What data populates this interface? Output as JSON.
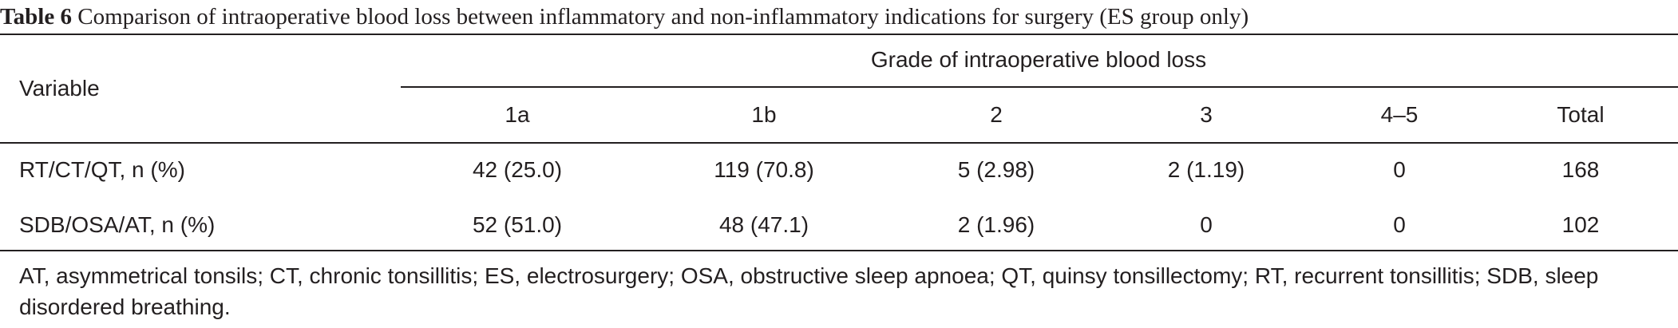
{
  "caption": {
    "label": "Table 6",
    "text": "Comparison of intraoperative blood loss between inflammatory and non-inflammatory indications for surgery (ES group only)"
  },
  "header": {
    "variable": "Variable",
    "group": "Grade of intraoperative blood loss",
    "columns": [
      "1a",
      "1b",
      "2",
      "3",
      "4–5",
      "Total"
    ]
  },
  "rows": [
    {
      "label": "RT/CT/QT, n (%)",
      "cells": [
        "42 (25.0)",
        "119 (70.8)",
        "5 (2.98)",
        "2 (1.19)",
        "0",
        "168"
      ]
    },
    {
      "label": "SDB/OSA/AT, n (%)",
      "cells": [
        "52 (51.0)",
        "48 (47.1)",
        "2 (1.96)",
        "0",
        "0",
        "102"
      ]
    }
  ],
  "footnote": "AT, asymmetrical tonsils; CT, chronic tonsillitis; ES, electrosurgery; OSA, obstructive sleep apnoea; QT, quinsy tonsillectomy; RT, recurrent tonsillitis; SDB, sleep disordered breathing."
}
